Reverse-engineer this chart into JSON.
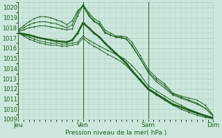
{
  "xlabel": "Pression niveau de la mer( hPa )",
  "ylim": [
    1009,
    1020.5
  ],
  "yticks": [
    1009,
    1010,
    1011,
    1012,
    1013,
    1014,
    1015,
    1016,
    1017,
    1018,
    1019,
    1020
  ],
  "xtick_labels": [
    "Jeu",
    "Ven",
    "Sam",
    "Dim"
  ],
  "xtick_positions": [
    0,
    96,
    192,
    288
  ],
  "xlim": [
    0,
    288
  ],
  "bg_color": "#cce8dc",
  "grid_color": "#aacfbe",
  "line_color": "#1e5c1e",
  "series": [
    {
      "name": "s_down1",
      "lw": 0.7,
      "points": [
        [
          0,
          1017.5
        ],
        [
          8,
          1017.3
        ],
        [
          16,
          1017.1
        ],
        [
          24,
          1016.9
        ],
        [
          32,
          1016.7
        ],
        [
          40,
          1016.6
        ],
        [
          48,
          1016.5
        ],
        [
          56,
          1016.5
        ],
        [
          64,
          1016.4
        ],
        [
          72,
          1016.4
        ],
        [
          80,
          1016.5
        ],
        [
          88,
          1016.6
        ],
        [
          96,
          1017.2
        ],
        [
          104,
          1016.8
        ],
        [
          112,
          1016.5
        ],
        [
          120,
          1016.2
        ],
        [
          132,
          1015.8
        ],
        [
          144,
          1015.4
        ],
        [
          156,
          1015.0
        ],
        [
          168,
          1014.3
        ],
        [
          180,
          1013.4
        ],
        [
          192,
          1012.3
        ],
        [
          204,
          1011.8
        ],
        [
          216,
          1011.3
        ],
        [
          228,
          1010.8
        ],
        [
          240,
          1010.4
        ],
        [
          252,
          1010.0
        ],
        [
          264,
          1009.7
        ],
        [
          276,
          1009.4
        ],
        [
          288,
          1009.2
        ]
      ]
    },
    {
      "name": "s_down2",
      "lw": 0.7,
      "points": [
        [
          0,
          1017.5
        ],
        [
          8,
          1017.2
        ],
        [
          16,
          1016.9
        ],
        [
          24,
          1016.7
        ],
        [
          32,
          1016.5
        ],
        [
          40,
          1016.4
        ],
        [
          48,
          1016.3
        ],
        [
          56,
          1016.3
        ],
        [
          64,
          1016.2
        ],
        [
          72,
          1016.2
        ],
        [
          80,
          1016.3
        ],
        [
          88,
          1016.4
        ],
        [
          96,
          1017.0
        ],
        [
          104,
          1016.5
        ],
        [
          112,
          1016.2
        ],
        [
          120,
          1015.9
        ],
        [
          132,
          1015.4
        ],
        [
          144,
          1015.0
        ],
        [
          156,
          1014.5
        ],
        [
          168,
          1013.7
        ],
        [
          180,
          1012.8
        ],
        [
          192,
          1011.9
        ],
        [
          204,
          1011.4
        ],
        [
          216,
          1010.9
        ],
        [
          228,
          1010.4
        ],
        [
          240,
          1010.0
        ],
        [
          252,
          1009.7
        ],
        [
          264,
          1009.4
        ],
        [
          276,
          1009.2
        ],
        [
          288,
          1009.05
        ]
      ]
    },
    {
      "name": "s_up1",
      "lw": 0.7,
      "points": [
        [
          0,
          1017.6
        ],
        [
          8,
          1017.8
        ],
        [
          16,
          1018.0
        ],
        [
          24,
          1018.1
        ],
        [
          32,
          1018.2
        ],
        [
          40,
          1018.2
        ],
        [
          48,
          1018.1
        ],
        [
          56,
          1018.0
        ],
        [
          64,
          1017.9
        ],
        [
          72,
          1017.8
        ],
        [
          80,
          1017.9
        ],
        [
          88,
          1019.2
        ],
        [
          96,
          1020.2
        ],
        [
          104,
          1019.3
        ],
        [
          112,
          1018.7
        ],
        [
          120,
          1018.4
        ],
        [
          128,
          1017.6
        ],
        [
          136,
          1017.3
        ],
        [
          144,
          1017.1
        ],
        [
          152,
          1017.1
        ],
        [
          160,
          1016.9
        ],
        [
          168,
          1016.2
        ],
        [
          180,
          1015.0
        ],
        [
          192,
          1013.6
        ],
        [
          204,
          1012.7
        ],
        [
          216,
          1012.1
        ],
        [
          228,
          1011.4
        ],
        [
          240,
          1011.1
        ],
        [
          252,
          1010.8
        ],
        [
          264,
          1010.5
        ],
        [
          276,
          1010.1
        ],
        [
          288,
          1009.3
        ]
      ]
    },
    {
      "name": "s_up2",
      "lw": 0.7,
      "points": [
        [
          0,
          1017.7
        ],
        [
          8,
          1018.0
        ],
        [
          16,
          1018.3
        ],
        [
          24,
          1018.5
        ],
        [
          32,
          1018.6
        ],
        [
          40,
          1018.6
        ],
        [
          48,
          1018.5
        ],
        [
          56,
          1018.4
        ],
        [
          64,
          1018.2
        ],
        [
          72,
          1018.0
        ],
        [
          80,
          1018.3
        ],
        [
          88,
          1019.5
        ],
        [
          96,
          1020.3
        ],
        [
          104,
          1019.5
        ],
        [
          112,
          1018.9
        ],
        [
          120,
          1018.6
        ],
        [
          128,
          1017.8
        ],
        [
          136,
          1017.5
        ],
        [
          144,
          1017.2
        ],
        [
          152,
          1017.2
        ],
        [
          160,
          1017.1
        ],
        [
          168,
          1016.6
        ],
        [
          180,
          1015.3
        ],
        [
          192,
          1013.9
        ],
        [
          204,
          1013.1
        ],
        [
          216,
          1012.5
        ],
        [
          228,
          1011.6
        ],
        [
          240,
          1011.3
        ],
        [
          252,
          1011.1
        ],
        [
          264,
          1010.9
        ],
        [
          276,
          1010.4
        ],
        [
          288,
          1009.4
        ]
      ]
    },
    {
      "name": "s_up3",
      "lw": 0.7,
      "points": [
        [
          0,
          1017.8
        ],
        [
          8,
          1018.2
        ],
        [
          16,
          1018.6
        ],
        [
          24,
          1018.9
        ],
        [
          32,
          1019.1
        ],
        [
          40,
          1019.1
        ],
        [
          48,
          1019.0
        ],
        [
          56,
          1018.8
        ],
        [
          64,
          1018.6
        ],
        [
          72,
          1018.3
        ],
        [
          80,
          1018.7
        ],
        [
          88,
          1019.7
        ],
        [
          96,
          1020.1
        ],
        [
          104,
          1019.2
        ],
        [
          112,
          1018.6
        ],
        [
          120,
          1018.3
        ],
        [
          128,
          1017.5
        ],
        [
          136,
          1017.3
        ],
        [
          144,
          1017.1
        ],
        [
          152,
          1017.0
        ],
        [
          160,
          1016.9
        ],
        [
          168,
          1016.3
        ],
        [
          180,
          1015.0
        ],
        [
          192,
          1013.7
        ],
        [
          204,
          1012.9
        ],
        [
          216,
          1012.3
        ],
        [
          228,
          1011.5
        ],
        [
          240,
          1011.2
        ],
        [
          252,
          1010.9
        ],
        [
          264,
          1010.6
        ],
        [
          276,
          1010.1
        ],
        [
          288,
          1009.35
        ]
      ]
    },
    {
      "name": "s_bold",
      "lw": 1.8,
      "points": [
        [
          0,
          1017.5
        ],
        [
          8,
          1017.4
        ],
        [
          16,
          1017.3
        ],
        [
          24,
          1017.15
        ],
        [
          32,
          1017.0
        ],
        [
          40,
          1016.9
        ],
        [
          48,
          1016.8
        ],
        [
          56,
          1016.7
        ],
        [
          64,
          1016.65
        ],
        [
          72,
          1016.6
        ],
        [
          80,
          1016.8
        ],
        [
          88,
          1017.5
        ],
        [
          96,
          1018.5
        ],
        [
          104,
          1018.0
        ],
        [
          112,
          1017.5
        ],
        [
          120,
          1017.1
        ],
        [
          128,
          1016.5
        ],
        [
          136,
          1016.0
        ],
        [
          144,
          1015.5
        ],
        [
          152,
          1015.0
        ],
        [
          160,
          1014.5
        ],
        [
          168,
          1013.8
        ],
        [
          180,
          1012.9
        ],
        [
          192,
          1012.0
        ],
        [
          204,
          1011.5
        ],
        [
          216,
          1011.0
        ],
        [
          228,
          1010.5
        ],
        [
          240,
          1010.2
        ],
        [
          252,
          1009.9
        ],
        [
          264,
          1009.6
        ],
        [
          276,
          1009.35
        ],
        [
          288,
          1009.1
        ]
      ]
    }
  ]
}
